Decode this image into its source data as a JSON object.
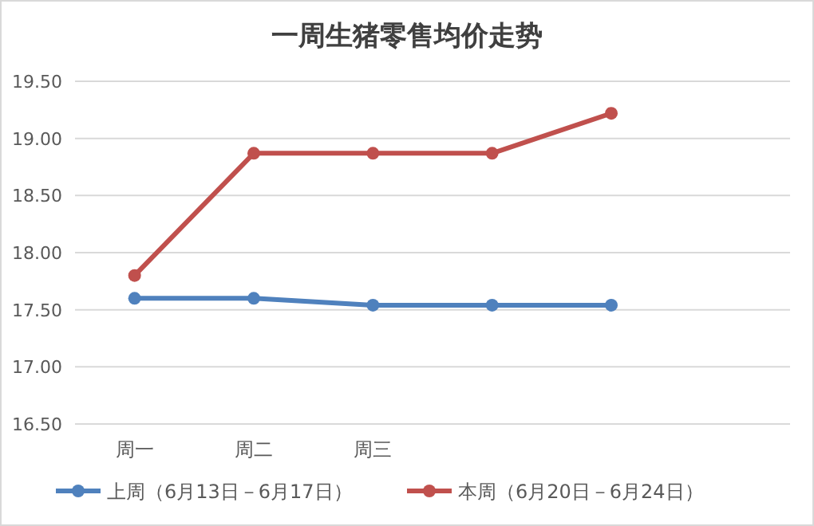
{
  "chart_data": {
    "type": "line",
    "title": "一周生猪零售均价走势",
    "categories": [
      "周一",
      "周二",
      "周三",
      null,
      null,
      null
    ],
    "series": [
      {
        "name": "上周（6月13日－6月17日）",
        "color": "#4f81bd",
        "values": [
          17.6,
          17.6,
          17.54,
          17.54,
          17.54,
          null
        ]
      },
      {
        "name": "本周（6月20日－6月24日）",
        "color": "#c0504d",
        "values": [
          17.8,
          18.87,
          18.87,
          18.87,
          19.22,
          null
        ]
      }
    ],
    "ylim": [
      16.5,
      19.5
    ],
    "yticks": [
      {
        "value": 16.5,
        "label": "16.50"
      },
      {
        "value": 17,
        "label": "17.00"
      },
      {
        "value": 17.5,
        "label": "17.50"
      },
      {
        "value": 18,
        "label": "18.00"
      },
      {
        "value": 18.5,
        "label": "18.50"
      },
      {
        "value": 19,
        "label": "19.00"
      },
      {
        "value": 19.5,
        "label": "19.50"
      }
    ],
    "grid": "y",
    "legend": "bottom",
    "marker": "circle",
    "line_style": "solid"
  }
}
